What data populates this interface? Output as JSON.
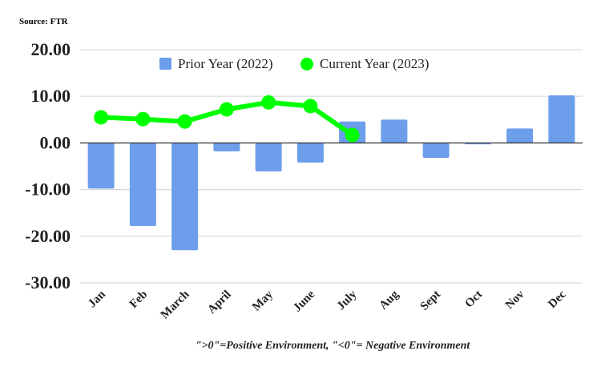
{
  "source_label": "Source: FTR",
  "footnote": "\">0\"=Positive Environment, \"<0\"= Negative Environment",
  "chart_data": {
    "type": "bar",
    "title": "",
    "xlabel": "",
    "ylabel": "",
    "categories": [
      "Jan",
      "Feb",
      "March",
      "April",
      "May",
      "June",
      "July",
      "Aug",
      "Sept",
      "Oct",
      "Nov",
      "Dec"
    ],
    "ylim": [
      -30,
      20
    ],
    "yticks": [
      20,
      10,
      0,
      -10,
      -20,
      -30
    ],
    "ytick_labels": [
      "20.00",
      "10.00",
      "0.00",
      "-10.00",
      "-20.00",
      "-30.00"
    ],
    "grid": true,
    "legend_position": "top-center",
    "series": [
      {
        "name": "Prior Year (2022)",
        "type": "bar",
        "color": "#6d9eeb",
        "values": [
          -9.8,
          -17.8,
          -23.0,
          -1.8,
          -6.1,
          -4.2,
          4.6,
          5.0,
          -3.2,
          -0.3,
          3.1,
          10.2
        ]
      },
      {
        "name": "Current Year (2023)",
        "type": "line",
        "color": "#00ff00",
        "values": [
          5.5,
          5.1,
          4.6,
          7.2,
          8.7,
          7.9,
          1.7,
          null,
          null,
          null,
          null,
          null
        ]
      }
    ]
  }
}
